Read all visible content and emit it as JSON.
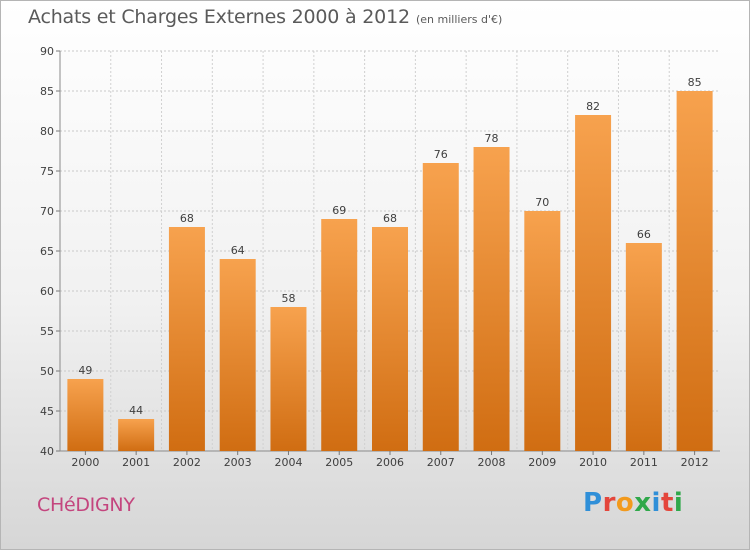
{
  "header": {
    "title": "Achats et Charges Externes 2000 à 2012",
    "subtitle": "(en milliers d'€)"
  },
  "footer": {
    "location": "CHéDIGNY",
    "logo_letters": [
      "P",
      "r",
      "o",
      "x",
      "i",
      "t",
      "i"
    ]
  },
  "colors": {
    "bar_top": "#f7a24e",
    "bar_bottom": "#d06d12",
    "location_text": "#c4457e",
    "logo": [
      "#2f8fd8",
      "#e4463b",
      "#f29a1d",
      "#2fa84a",
      "#2f8fd8",
      "#e4463b",
      "#2fa84a"
    ]
  },
  "chart_data": {
    "type": "bar",
    "title": "Achats et Charges Externes 2000 à 2012",
    "subtitle": "(en milliers d'€)",
    "categories": [
      "2000",
      "2001",
      "2002",
      "2003",
      "2004",
      "2005",
      "2006",
      "2007",
      "2008",
      "2009",
      "2010",
      "2011",
      "2012"
    ],
    "values": [
      49,
      44,
      68,
      64,
      58,
      69,
      68,
      76,
      78,
      70,
      82,
      66,
      85
    ],
    "data_labels": [
      "49",
      "44",
      "68",
      "64",
      "58",
      "69",
      "68",
      "76",
      "78",
      "70",
      "82",
      "66",
      "85"
    ],
    "ylim": [
      40,
      90
    ],
    "yticks": [
      40,
      45,
      50,
      55,
      60,
      65,
      70,
      75,
      80,
      85,
      90
    ],
    "grid": true
  }
}
